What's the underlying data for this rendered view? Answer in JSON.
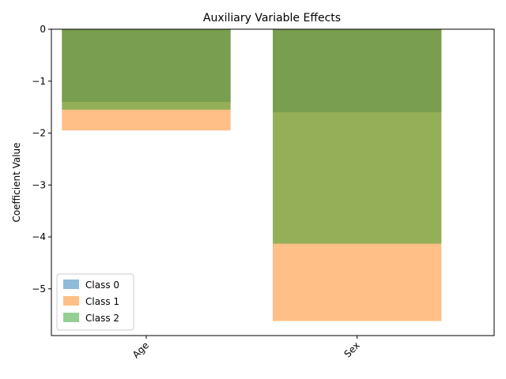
{
  "chart_data": {
    "type": "bar",
    "title": "Auxiliary Variable Effects",
    "xlabel": "",
    "ylabel": "Coefficient Value",
    "categories": [
      "Age",
      "Sex"
    ],
    "series": [
      {
        "name": "Class 0",
        "values": [
          -1.4,
          -1.6
        ],
        "color": "#1f77b4",
        "opacity": 0.5
      },
      {
        "name": "Class 1",
        "values": [
          -1.95,
          -5.62
        ],
        "color": "#ff7f0e",
        "opacity": 0.5
      },
      {
        "name": "Class 2",
        "values": [
          -1.55,
          -4.13
        ],
        "color": "#2ca02c",
        "opacity": 0.5
      }
    ],
    "ylim": [
      -5.9,
      0
    ],
    "yticks": [
      0,
      -1,
      -2,
      -3,
      -4,
      -5
    ],
    "ytick_labels": [
      "0",
      "−1",
      "−2",
      "−3",
      "−4",
      "−5"
    ],
    "grid": false,
    "legend_position": "lower-left",
    "bar_mode": "overlaid"
  }
}
